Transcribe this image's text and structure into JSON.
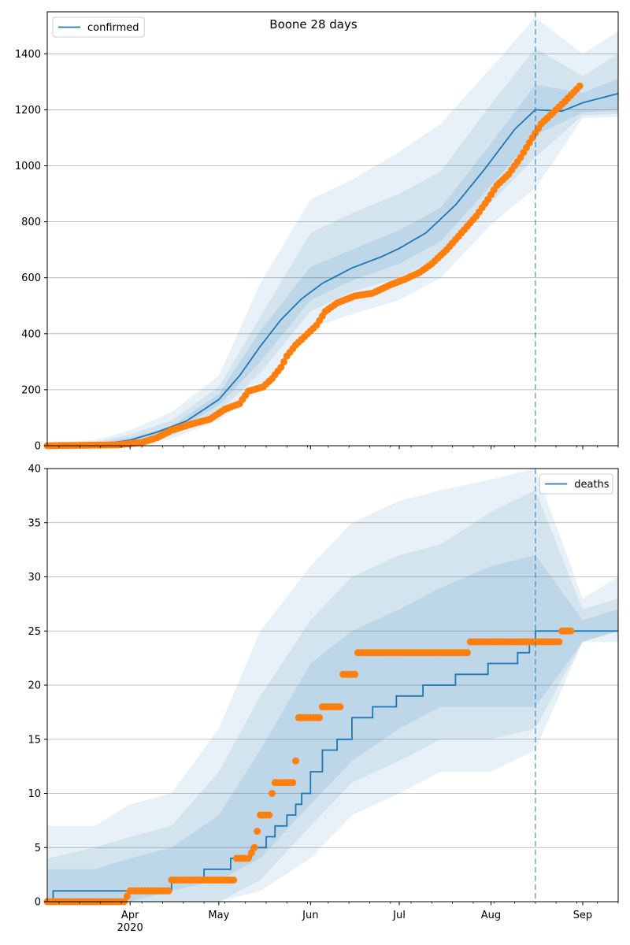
{
  "figure": {
    "title": "Boone 28 days",
    "xlabel": "",
    "year_label": "2020",
    "month_ticks": [
      {
        "label": "Apr",
        "date": "2020-04-01"
      },
      {
        "label": "May",
        "date": "2020-05-01"
      },
      {
        "label": "Jun",
        "date": "2020-06-01"
      },
      {
        "label": "Jul",
        "date": "2020-07-01"
      },
      {
        "label": "Aug",
        "date": "2020-08-01"
      },
      {
        "label": "Sep",
        "date": "2020-09-01"
      }
    ],
    "x_range": [
      "2020-03-04",
      "2020-09-13"
    ],
    "forecast_start": "2020-08-16",
    "colors": {
      "model": "#1f77b4",
      "band": "#1f77b4",
      "observed": "#ff7f0e",
      "grid": "#b0b0b0"
    }
  },
  "chart_data": [
    {
      "type": "line",
      "panel": "top",
      "legend_label": "confirmed",
      "legend_position": "upper-left",
      "grid": "horizontal",
      "ylim": [
        0,
        1550
      ],
      "yticks": [
        0,
        200,
        400,
        600,
        800,
        1000,
        1200,
        1400
      ],
      "model": {
        "name": "confirmed",
        "points": [
          [
            "2020-03-04",
            0
          ],
          [
            "2020-03-20",
            4
          ],
          [
            "2020-03-25",
            9
          ],
          [
            "2020-04-01",
            20
          ],
          [
            "2020-04-10",
            48
          ],
          [
            "2020-04-20",
            88
          ],
          [
            "2020-05-01",
            165
          ],
          [
            "2020-05-08",
            250
          ],
          [
            "2020-05-15",
            355
          ],
          [
            "2020-05-22",
            450
          ],
          [
            "2020-05-29",
            525
          ],
          [
            "2020-06-05",
            580
          ],
          [
            "2020-06-15",
            635
          ],
          [
            "2020-06-25",
            675
          ],
          [
            "2020-07-01",
            705
          ],
          [
            "2020-07-10",
            760
          ],
          [
            "2020-07-20",
            860
          ],
          [
            "2020-07-30",
            990
          ],
          [
            "2020-08-09",
            1130
          ],
          [
            "2020-08-16",
            1200
          ],
          [
            "2020-08-25",
            1195
          ],
          [
            "2020-09-01",
            1225
          ],
          [
            "2020-09-13",
            1258
          ]
        ]
      },
      "bands": {
        "x": [
          "2020-03-04",
          "2020-03-20",
          "2020-04-01",
          "2020-04-15",
          "2020-05-01",
          "2020-05-15",
          "2020-06-01",
          "2020-06-15",
          "2020-07-01",
          "2020-07-15",
          "2020-08-01",
          "2020-08-16",
          "2020-09-01",
          "2020-09-13"
        ],
        "outer_lo": [
          0,
          0,
          5,
          25,
          90,
          200,
          420,
          470,
          520,
          600,
          790,
          920,
          1170,
          1175
        ],
        "outer_hi": [
          10,
          20,
          55,
          120,
          250,
          580,
          880,
          950,
          1050,
          1150,
          1350,
          1530,
          1400,
          1480
        ],
        "mid_lo": [
          0,
          2,
          10,
          35,
          120,
          260,
          480,
          550,
          600,
          680,
          870,
          1030,
          1180,
          1185
        ],
        "mid_hi": [
          5,
          12,
          40,
          90,
          210,
          460,
          760,
          830,
          900,
          980,
          1220,
          1420,
          1320,
          1400
        ],
        "inner_lo": [
          0,
          3,
          15,
          45,
          145,
          300,
          520,
          590,
          650,
          730,
          930,
          1110,
          1190,
          1200
        ],
        "inner_hi": [
          2,
          8,
          28,
          70,
          185,
          410,
          640,
          700,
          770,
          850,
          1080,
          1290,
          1260,
          1310
        ]
      },
      "observed": {
        "name": "observed confirmed",
        "points": [
          [
            "2020-03-04",
            0
          ],
          [
            "2020-03-28",
            3
          ],
          [
            "2020-04-05",
            12
          ],
          [
            "2020-04-10",
            28
          ],
          [
            "2020-04-15",
            55
          ],
          [
            "2020-04-22",
            78
          ],
          [
            "2020-04-28",
            95
          ],
          [
            "2020-05-03",
            130
          ],
          [
            "2020-05-08",
            150
          ],
          [
            "2020-05-11",
            195
          ],
          [
            "2020-05-16",
            210
          ],
          [
            "2020-05-19",
            240
          ],
          [
            "2020-05-22",
            280
          ],
          [
            "2020-05-24",
            320
          ],
          [
            "2020-05-27",
            360
          ],
          [
            "2020-05-30",
            390
          ],
          [
            "2020-06-03",
            430
          ],
          [
            "2020-06-06",
            480
          ],
          [
            "2020-06-10",
            510
          ],
          [
            "2020-06-16",
            535
          ],
          [
            "2020-06-22",
            545
          ],
          [
            "2020-06-28",
            575
          ],
          [
            "2020-07-03",
            595
          ],
          [
            "2020-07-08",
            620
          ],
          [
            "2020-07-12",
            650
          ],
          [
            "2020-07-17",
            700
          ],
          [
            "2020-07-22",
            760
          ],
          [
            "2020-07-27",
            820
          ],
          [
            "2020-07-31",
            880
          ],
          [
            "2020-08-03",
            930
          ],
          [
            "2020-08-07",
            970
          ],
          [
            "2020-08-11",
            1030
          ],
          [
            "2020-08-15",
            1100
          ],
          [
            "2020-08-18",
            1150
          ],
          [
            "2020-08-21",
            1180
          ],
          [
            "2020-08-26",
            1230
          ],
          [
            "2020-08-31",
            1285
          ]
        ]
      }
    },
    {
      "type": "step",
      "panel": "bottom",
      "legend_label": "deaths",
      "legend_position": "upper-right",
      "grid": "horizontal",
      "ylim": [
        0,
        40
      ],
      "yticks": [
        0,
        5,
        10,
        15,
        20,
        25,
        30,
        35,
        40
      ],
      "model": {
        "name": "deaths",
        "points": [
          [
            "2020-03-04",
            0
          ],
          [
            "2020-03-06",
            1
          ],
          [
            "2020-04-15",
            2
          ],
          [
            "2020-04-26",
            3
          ],
          [
            "2020-05-05",
            4
          ],
          [
            "2020-05-12",
            5
          ],
          [
            "2020-05-17",
            6
          ],
          [
            "2020-05-20",
            7
          ],
          [
            "2020-05-24",
            8
          ],
          [
            "2020-05-27",
            9
          ],
          [
            "2020-05-29",
            10
          ],
          [
            "2020-06-01",
            12
          ],
          [
            "2020-06-05",
            14
          ],
          [
            "2020-06-10",
            15
          ],
          [
            "2020-06-15",
            17
          ],
          [
            "2020-06-22",
            18
          ],
          [
            "2020-06-30",
            19
          ],
          [
            "2020-07-09",
            20
          ],
          [
            "2020-07-20",
            21
          ],
          [
            "2020-07-31",
            22
          ],
          [
            "2020-08-10",
            23
          ],
          [
            "2020-08-14",
            24
          ],
          [
            "2020-08-16",
            25
          ],
          [
            "2020-09-13",
            25
          ]
        ]
      },
      "bands": {
        "x": [
          "2020-03-04",
          "2020-03-20",
          "2020-04-01",
          "2020-04-15",
          "2020-05-01",
          "2020-05-15",
          "2020-06-01",
          "2020-06-15",
          "2020-07-01",
          "2020-07-15",
          "2020-08-01",
          "2020-08-16",
          "2020-09-01",
          "2020-09-13"
        ],
        "outer_lo": [
          0,
          0,
          0,
          0,
          0,
          1,
          4,
          8,
          10,
          12,
          12,
          14,
          24,
          24
        ],
        "outer_hi": [
          7,
          7,
          9,
          10,
          16,
          25,
          31,
          35,
          37,
          38,
          39,
          40,
          28,
          30
        ],
        "mid_lo": [
          0,
          0,
          0,
          0,
          0,
          2,
          7,
          11,
          13,
          15,
          15,
          16,
          24,
          25
        ],
        "mid_hi": [
          4,
          5,
          6,
          7,
          12,
          19,
          26,
          30,
          32,
          33,
          36,
          38,
          27,
          28
        ],
        "inner_lo": [
          0,
          0,
          0,
          1,
          2,
          4,
          9,
          13,
          16,
          18,
          18,
          18,
          24,
          25
        ],
        "inner_hi": [
          3,
          3,
          4,
          5,
          8,
          14,
          22,
          25,
          27,
          29,
          31,
          32,
          26,
          27
        ]
      },
      "observed": {
        "name": "observed deaths",
        "points": [
          [
            "2020-03-04",
            0
          ],
          [
            "2020-03-30",
            0
          ],
          [
            "2020-04-01",
            1
          ],
          [
            "2020-04-14",
            1
          ],
          [
            "2020-04-15",
            2
          ],
          [
            "2020-05-06",
            2
          ],
          [
            "2020-05-07",
            4
          ],
          [
            "2020-05-11",
            4
          ],
          [
            "2020-05-13",
            5
          ],
          [
            "2020-05-15",
            8
          ],
          [
            "2020-05-18",
            8
          ],
          [
            "2020-05-19",
            10
          ],
          [
            "2020-05-20",
            11
          ],
          [
            "2020-05-26",
            11
          ],
          [
            "2020-05-27",
            13
          ],
          [
            "2020-05-28",
            17
          ],
          [
            "2020-06-04",
            17
          ],
          [
            "2020-06-05",
            18
          ],
          [
            "2020-06-11",
            18
          ],
          [
            "2020-06-12",
            21
          ],
          [
            "2020-06-16",
            21
          ],
          [
            "2020-06-17",
            23
          ],
          [
            "2020-07-24",
            23
          ],
          [
            "2020-07-25",
            24
          ],
          [
            "2020-08-24",
            24
          ],
          [
            "2020-08-25",
            25
          ],
          [
            "2020-08-28",
            25
          ]
        ]
      }
    }
  ]
}
